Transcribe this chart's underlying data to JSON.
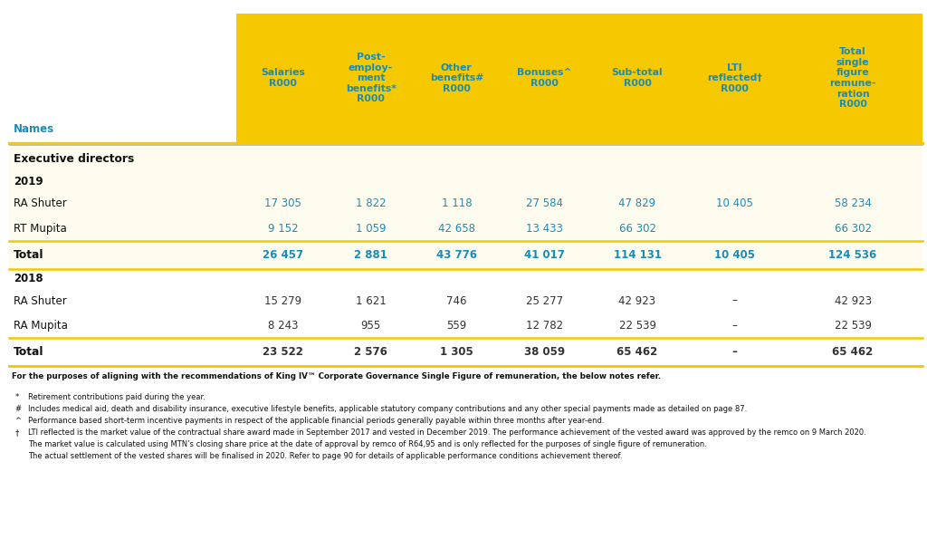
{
  "background_color": "#ffffff",
  "header_bg": "#F5C800",
  "data_bg_2019": "#FEFBEF",
  "data_bg_2018": "#ffffff",
  "header_text_color": "#1a8cba",
  "data_text_color_2019": "#1a8cba",
  "data_text_color_2018": "#333333",
  "names_label_color": "#1a8cba",
  "col_headers": [
    "Salaries\nR000",
    "Post-\nemploy-\nment\nbenefits*\nR000",
    "Other\nbenefits#\nR000",
    "Bonuses^\nR000",
    "Sub-total\nR000",
    "LTI\nreflected†\nR000",
    "Total\nsingle\nfigure\nremune-\nration\nR000"
  ],
  "names_label": "Names",
  "footnote_bold": "For the purposes of aligning with the recommendations of King IV™ Corporate Governance Single Figure of remuneration, the below notes refer.",
  "footnotes": [
    {
      "symbol": "*",
      "text": "Retirement contributions paid during the year."
    },
    {
      "symbol": "#",
      "text": "Includes medical aid, death and disability insurance, executive lifestyle benefits, applicable statutory company contributions and any other special payments made as detailed on page 87."
    },
    {
      "symbol": "^",
      "text": "Performance based short-term incentive payments in respect of the applicable financial periods generally payable within three months after year-end."
    },
    {
      "symbol": "†",
      "text": "LTI reflected is the market value of the contractual share award made in September 2017 and vested in December 2019. The performance achievement of the vested award was approved by the remco on 9 March 2020.\nThe market value is calculated using MTN’s closing share price at the date of approval by remco of R64,95 and is only reflected for the purposes of single figure of remuneration.\nThe actual settlement of the vested shares will be finalised in 2020. Refer to page 90 for details of applicable performance conditions achievement thereof."
    }
  ]
}
